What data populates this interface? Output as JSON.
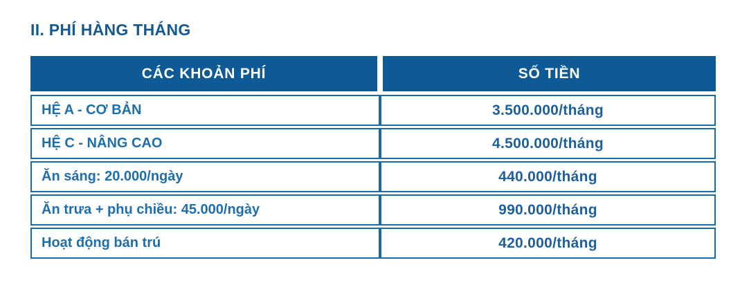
{
  "page": {
    "title": "II. PHÍ HÀNG THÁNG"
  },
  "colors": {
    "header_background": "#0d5a96",
    "table_border": "#1a6aa6",
    "title_text": "#15598f",
    "label_text": "#1e6eae",
    "amount_text": "#1e5f9e",
    "header_text": "#ffffff"
  },
  "table": {
    "headers": [
      "CÁC KHOẢN PHÍ",
      "SỐ TIỀN"
    ],
    "rows": [
      {
        "label": "HỆ A - CƠ BẢN",
        "amount": "3.500.000/tháng"
      },
      {
        "label": "HỆ C - NÂNG CAO",
        "amount": "4.500.000/tháng"
      },
      {
        "label": "Ăn sáng: 20.000/ngày",
        "amount": "440.000/tháng"
      },
      {
        "label": "Ăn trưa + phụ chiều: 45.000/ngày",
        "amount": "990.000/tháng"
      },
      {
        "label": "Hoạt động bán trú",
        "amount": "420.000/tháng"
      }
    ]
  }
}
